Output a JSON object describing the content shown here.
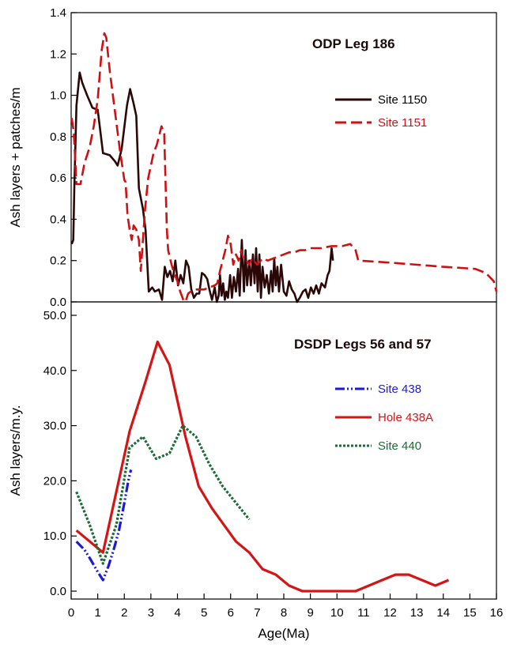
{
  "chart_data": [
    {
      "type": "line",
      "title": "ODP Leg 186",
      "ylabel": "Ash layers + patches/m",
      "xlabel": "",
      "xlim": [
        0,
        16
      ],
      "ylim": [
        0,
        1.4
      ],
      "yticks": [
        0.0,
        0.2,
        0.4,
        0.6,
        0.8,
        1.0,
        1.2,
        1.4
      ],
      "ytick_labels": [
        "0.0",
        "0.2",
        "0.4",
        "0.6",
        "0.8",
        "1.0",
        "1.2",
        "1.4"
      ],
      "legend_position": "right",
      "series": [
        {
          "name": "Site 1150",
          "color": "#2a0808",
          "style": "solid",
          "points": [
            [
              0.02,
              0.28
            ],
            [
              0.08,
              0.3
            ],
            [
              0.12,
              0.55
            ],
            [
              0.2,
              0.95
            ],
            [
              0.32,
              1.11
            ],
            [
              0.42,
              1.06
            ],
            [
              0.6,
              1.0
            ],
            [
              0.8,
              0.94
            ],
            [
              1.0,
              0.93
            ],
            [
              1.2,
              0.72
            ],
            [
              1.45,
              0.71
            ],
            [
              1.65,
              0.68
            ],
            [
              1.75,
              0.66
            ],
            [
              1.9,
              0.74
            ],
            [
              2.1,
              0.95
            ],
            [
              2.22,
              1.03
            ],
            [
              2.35,
              0.96
            ],
            [
              2.45,
              0.9
            ],
            [
              2.55,
              0.55
            ],
            [
              2.7,
              0.45
            ],
            [
              2.8,
              0.35
            ],
            [
              2.92,
              0.05
            ],
            [
              3.05,
              0.07
            ],
            [
              3.15,
              0.05
            ],
            [
              3.3,
              0.06
            ],
            [
              3.42,
              0.01
            ],
            [
              3.52,
              0.17
            ],
            [
              3.62,
              0.12
            ],
            [
              3.72,
              0.15
            ],
            [
              3.82,
              0.1
            ],
            [
              3.92,
              0.2
            ],
            [
              4.02,
              0.08
            ],
            [
              4.12,
              0.13
            ],
            [
              4.22,
              0.09
            ],
            [
              4.32,
              0.2
            ],
            [
              4.42,
              0.17
            ],
            [
              4.52,
              0.06
            ],
            [
              4.62,
              0.02
            ],
            [
              4.72,
              0.04
            ],
            [
              4.82,
              0.04
            ],
            [
              4.92,
              0.14
            ],
            [
              5.02,
              0.13
            ],
            [
              5.12,
              0.11
            ],
            [
              5.2,
              0.06
            ],
            [
              5.3,
              0.01
            ],
            [
              5.4,
              0.07
            ],
            [
              5.48,
              0.0
            ],
            [
              5.55,
              0.03
            ],
            [
              5.6,
              0.13
            ],
            [
              5.66,
              0.03
            ],
            [
              5.72,
              0.09
            ],
            [
              5.78,
              0.01
            ],
            [
              5.84,
              0.05
            ],
            [
              5.9,
              0.02
            ],
            [
              5.98,
              0.13
            ],
            [
              6.05,
              0.02
            ],
            [
              6.12,
              0.12
            ],
            [
              6.2,
              0.05
            ],
            [
              6.28,
              0.16
            ],
            [
              6.34,
              0.03
            ],
            [
              6.42,
              0.3
            ],
            [
              6.5,
              0.05
            ],
            [
              6.56,
              0.25
            ],
            [
              6.62,
              0.08
            ],
            [
              6.7,
              0.2
            ],
            [
              6.76,
              0.08
            ],
            [
              6.84,
              0.23
            ],
            [
              6.9,
              0.09
            ],
            [
              6.96,
              0.26
            ],
            [
              7.02,
              0.05
            ],
            [
              7.08,
              0.23
            ],
            [
              7.14,
              0.02
            ],
            [
              7.2,
              0.17
            ],
            [
              7.28,
              0.07
            ],
            [
              7.36,
              0.13
            ],
            [
              7.44,
              0.04
            ],
            [
              7.52,
              0.15
            ],
            [
              7.58,
              0.05
            ],
            [
              7.64,
              0.21
            ],
            [
              7.7,
              0.08
            ],
            [
              7.76,
              0.17
            ],
            [
              7.82,
              0.05
            ],
            [
              7.9,
              0.18
            ],
            [
              8.0,
              0.05
            ],
            [
              8.1,
              0.03
            ],
            [
              8.2,
              0.1
            ],
            [
              8.3,
              0.06
            ],
            [
              8.4,
              0.04
            ],
            [
              8.5,
              0.0
            ],
            [
              8.6,
              0.02
            ],
            [
              8.72,
              0.05
            ],
            [
              8.82,
              0.06
            ],
            [
              8.92,
              0.02
            ],
            [
              9.02,
              0.07
            ],
            [
              9.12,
              0.04
            ],
            [
              9.22,
              0.08
            ],
            [
              9.32,
              0.04
            ],
            [
              9.42,
              0.09
            ],
            [
              9.55,
              0.07
            ],
            [
              9.65,
              0.13
            ],
            [
              9.72,
              0.15
            ],
            [
              9.8,
              0.26
            ],
            [
              9.85,
              0.2
            ]
          ]
        },
        {
          "name": "Site 1151",
          "color": "#d01010",
          "style": "dashed",
          "points": [
            [
              0.02,
              0.89
            ],
            [
              0.1,
              0.82
            ],
            [
              0.2,
              0.57
            ],
            [
              0.35,
              0.57
            ],
            [
              0.5,
              0.67
            ],
            [
              0.7,
              0.75
            ],
            [
              0.85,
              0.85
            ],
            [
              1.0,
              0.98
            ],
            [
              1.15,
              1.22
            ],
            [
              1.25,
              1.3
            ],
            [
              1.32,
              1.28
            ],
            [
              1.45,
              1.12
            ],
            [
              1.6,
              0.97
            ],
            [
              1.75,
              0.82
            ],
            [
              1.85,
              0.72
            ],
            [
              2.0,
              0.59
            ],
            [
              2.05,
              0.58
            ],
            [
              2.12,
              0.42
            ],
            [
              2.2,
              0.35
            ],
            [
              2.28,
              0.3
            ],
            [
              2.35,
              0.37
            ],
            [
              2.45,
              0.35
            ],
            [
              2.55,
              0.3
            ],
            [
              2.62,
              0.15
            ],
            [
              2.7,
              0.3
            ],
            [
              2.78,
              0.45
            ],
            [
              2.9,
              0.6
            ],
            [
              3.0,
              0.66
            ],
            [
              3.1,
              0.72
            ],
            [
              3.22,
              0.76
            ],
            [
              3.3,
              0.8
            ],
            [
              3.4,
              0.85
            ],
            [
              3.5,
              0.82
            ],
            [
              3.55,
              0.58
            ],
            [
              3.6,
              0.35
            ],
            [
              3.65,
              0.25
            ],
            [
              3.72,
              0.21
            ],
            [
              3.8,
              0.17
            ],
            [
              3.9,
              0.13
            ],
            [
              4.0,
              0.1
            ],
            [
              4.1,
              0.05
            ],
            [
              4.22,
              0.01
            ],
            [
              4.3,
              0.0
            ],
            [
              4.4,
              0.04
            ],
            [
              4.5,
              0.05
            ],
            [
              4.6,
              0.06
            ],
            [
              4.8,
              0.06
            ],
            [
              5.0,
              0.06
            ],
            [
              5.2,
              0.07
            ],
            [
              5.4,
              0.08
            ],
            [
              5.5,
              0.09
            ],
            [
              5.6,
              0.15
            ],
            [
              5.7,
              0.2
            ],
            [
              5.8,
              0.25
            ],
            [
              5.9,
              0.32
            ],
            [
              6.0,
              0.28
            ],
            [
              6.1,
              0.18
            ],
            [
              6.2,
              0.23
            ],
            [
              6.3,
              0.2
            ],
            [
              6.4,
              0.25
            ],
            [
              6.5,
              0.2
            ],
            [
              6.6,
              0.2
            ],
            [
              6.7,
              0.18
            ],
            [
              6.8,
              0.21
            ],
            [
              7.0,
              0.18
            ],
            [
              7.2,
              0.21
            ],
            [
              7.4,
              0.2
            ],
            [
              7.6,
              0.21
            ],
            [
              7.8,
              0.22
            ],
            [
              8.0,
              0.23
            ],
            [
              8.2,
              0.24
            ],
            [
              8.4,
              0.24
            ],
            [
              8.6,
              0.25
            ],
            [
              8.8,
              0.25
            ],
            [
              9.0,
              0.26
            ],
            [
              9.4,
              0.26
            ],
            [
              9.8,
              0.27
            ],
            [
              10.2,
              0.27
            ],
            [
              10.5,
              0.28
            ],
            [
              10.7,
              0.25
            ],
            [
              10.8,
              0.2
            ],
            [
              12.0,
              0.19
            ],
            [
              14.0,
              0.17
            ],
            [
              15.2,
              0.16
            ],
            [
              15.6,
              0.14
            ],
            [
              15.9,
              0.1
            ],
            [
              16.0,
              0.05
            ]
          ]
        }
      ]
    },
    {
      "type": "line",
      "title": "DSDP Legs 56 and 57",
      "ylabel": "Ash layers/m.y.",
      "xlabel": "Age(Ma)",
      "xlim": [
        0,
        16
      ],
      "ylim": [
        0,
        50
      ],
      "xticks": [
        0,
        1,
        2,
        3,
        4,
        5,
        6,
        7,
        8,
        9,
        10,
        11,
        12,
        13,
        14,
        15,
        16
      ],
      "xtick_labels": [
        "0",
        "1",
        "2",
        "3",
        "4",
        "5",
        "6",
        "7",
        "8",
        "9",
        "10",
        "11",
        "12",
        "13",
        "14",
        "15",
        "16"
      ],
      "yticks": [
        0,
        10,
        20,
        30,
        40,
        50
      ],
      "ytick_labels": [
        "0.0",
        "10.0",
        "20.0",
        "30.0",
        "40.0",
        "50.0"
      ],
      "legend_position": "right",
      "series": [
        {
          "name": "Site 438",
          "color": "#1a1ad8",
          "style": "dashdotdot",
          "points": [
            [
              0.2,
              9
            ],
            [
              0.5,
              7.5
            ],
            [
              0.7,
              6
            ],
            [
              1.0,
              3.5
            ],
            [
              1.2,
              2
            ],
            [
              1.4,
              4.5
            ],
            [
              1.6,
              7.5
            ],
            [
              1.8,
              11
            ],
            [
              2.0,
              16
            ],
            [
              2.15,
              20
            ],
            [
              2.25,
              22
            ]
          ]
        },
        {
          "name": "Hole 438A",
          "color": "#d41515",
          "style": "solid",
          "points": [
            [
              0.2,
              11
            ],
            [
              1.2,
              7
            ],
            [
              2.2,
              29
            ],
            [
              2.8,
              38
            ],
            [
              3.25,
              45.2
            ],
            [
              3.7,
              41
            ],
            [
              4.3,
              28
            ],
            [
              4.8,
              19
            ],
            [
              5.3,
              15
            ],
            [
              6.2,
              9
            ],
            [
              6.7,
              7
            ],
            [
              7.2,
              4
            ],
            [
              7.7,
              3
            ],
            [
              8.2,
              1
            ],
            [
              8.7,
              0
            ],
            [
              10.7,
              0
            ],
            [
              11.7,
              2
            ],
            [
              12.2,
              3
            ],
            [
              12.7,
              3
            ],
            [
              13.7,
              1
            ],
            [
              14.2,
              2
            ]
          ]
        },
        {
          "name": "Site 440",
          "color": "#1b6b34",
          "style": "dotted",
          "points": [
            [
              0.2,
              18
            ],
            [
              0.7,
              12
            ],
            [
              1.2,
              5
            ],
            [
              1.7,
              12
            ],
            [
              2.2,
              26
            ],
            [
              2.7,
              28
            ],
            [
              3.2,
              24
            ],
            [
              3.7,
              25
            ],
            [
              4.2,
              30
            ],
            [
              4.7,
              28
            ],
            [
              5.2,
              23
            ],
            [
              5.7,
              19
            ],
            [
              6.2,
              16
            ],
            [
              6.7,
              13
            ]
          ]
        }
      ]
    }
  ]
}
